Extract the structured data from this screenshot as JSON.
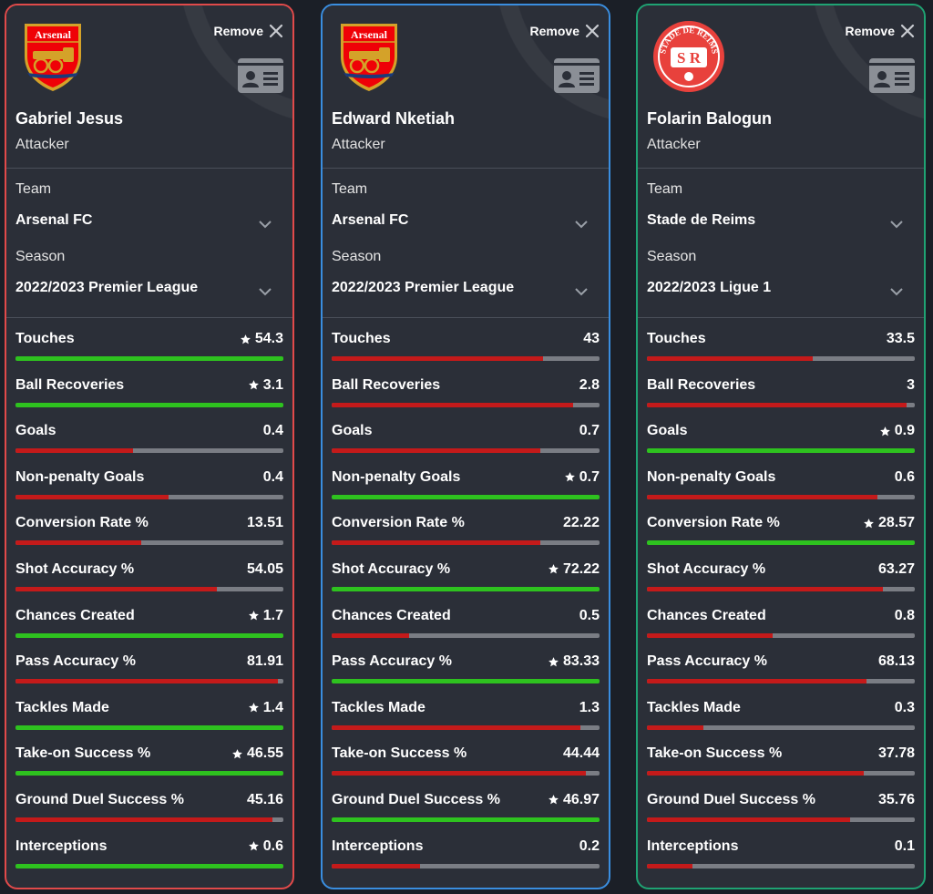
{
  "colors": {
    "best": "#2ec21f",
    "normal": "#c41a1a",
    "track": "#7a7d84"
  },
  "cards": [
    {
      "border": "#e14a4a",
      "club": "arsenal",
      "crest_text": "Arsenal",
      "remove_label": "Remove",
      "name": "Gabriel Jesus",
      "role": "Attacker",
      "team_label": "Team",
      "team": "Arsenal FC",
      "season_label": "Season",
      "season": "2022/2023 Premier League",
      "stats": [
        {
          "name": "Touches",
          "value": "54.3",
          "best": true,
          "fill": 1.0
        },
        {
          "name": "Ball Recoveries",
          "value": "3.1",
          "best": true,
          "fill": 1.0
        },
        {
          "name": "Goals",
          "value": "0.4",
          "best": false,
          "fill": 0.44
        },
        {
          "name": "Non-penalty Goals",
          "value": "0.4",
          "best": false,
          "fill": 0.57
        },
        {
          "name": "Conversion Rate %",
          "value": "13.51",
          "best": false,
          "fill": 0.47
        },
        {
          "name": "Shot Accuracy %",
          "value": "54.05",
          "best": false,
          "fill": 0.75
        },
        {
          "name": "Chances Created",
          "value": "1.7",
          "best": true,
          "fill": 1.0
        },
        {
          "name": "Pass Accuracy %",
          "value": "81.91",
          "best": false,
          "fill": 0.98
        },
        {
          "name": "Tackles Made",
          "value": "1.4",
          "best": true,
          "fill": 1.0
        },
        {
          "name": "Take-on Success %",
          "value": "46.55",
          "best": true,
          "fill": 1.0
        },
        {
          "name": "Ground Duel Success %",
          "value": "45.16",
          "best": false,
          "fill": 0.96
        },
        {
          "name": "Interceptions",
          "value": "0.6",
          "best": true,
          "fill": 1.0
        }
      ]
    },
    {
      "border": "#3a8ee0",
      "club": "arsenal",
      "crest_text": "Arsenal",
      "remove_label": "Remove",
      "name": "Edward Nketiah",
      "role": "Attacker",
      "team_label": "Team",
      "team": "Arsenal FC",
      "season_label": "Season",
      "season": "2022/2023 Premier League",
      "stats": [
        {
          "name": "Touches",
          "value": "43",
          "best": false,
          "fill": 0.79
        },
        {
          "name": "Ball Recoveries",
          "value": "2.8",
          "best": false,
          "fill": 0.9
        },
        {
          "name": "Goals",
          "value": "0.7",
          "best": false,
          "fill": 0.78
        },
        {
          "name": "Non-penalty Goals",
          "value": "0.7",
          "best": true,
          "fill": 1.0
        },
        {
          "name": "Conversion Rate %",
          "value": "22.22",
          "best": false,
          "fill": 0.78
        },
        {
          "name": "Shot Accuracy %",
          "value": "72.22",
          "best": true,
          "fill": 1.0
        },
        {
          "name": "Chances Created",
          "value": "0.5",
          "best": false,
          "fill": 0.29
        },
        {
          "name": "Pass Accuracy %",
          "value": "83.33",
          "best": true,
          "fill": 1.0
        },
        {
          "name": "Tackles Made",
          "value": "1.3",
          "best": false,
          "fill": 0.93
        },
        {
          "name": "Take-on Success %",
          "value": "44.44",
          "best": false,
          "fill": 0.95
        },
        {
          "name": "Ground Duel Success %",
          "value": "46.97",
          "best": true,
          "fill": 1.0
        },
        {
          "name": "Interceptions",
          "value": "0.2",
          "best": false,
          "fill": 0.33
        }
      ]
    },
    {
      "border": "#1fa373",
      "club": "reims",
      "crest_text": "STADE DE REIMS",
      "crest_letters": "S R",
      "remove_label": "Remove",
      "name": "Folarin Balogun",
      "role": "Attacker",
      "team_label": "Team",
      "team": "Stade de Reims",
      "season_label": "Season",
      "season": "2022/2023 Ligue 1",
      "stats": [
        {
          "name": "Touches",
          "value": "33.5",
          "best": false,
          "fill": 0.62
        },
        {
          "name": "Ball Recoveries",
          "value": "3",
          "best": false,
          "fill": 0.97
        },
        {
          "name": "Goals",
          "value": "0.9",
          "best": true,
          "fill": 1.0
        },
        {
          "name": "Non-penalty Goals",
          "value": "0.6",
          "best": false,
          "fill": 0.86
        },
        {
          "name": "Conversion Rate %",
          "value": "28.57",
          "best": true,
          "fill": 1.0
        },
        {
          "name": "Shot Accuracy %",
          "value": "63.27",
          "best": false,
          "fill": 0.88
        },
        {
          "name": "Chances Created",
          "value": "0.8",
          "best": false,
          "fill": 0.47
        },
        {
          "name": "Pass Accuracy %",
          "value": "68.13",
          "best": false,
          "fill": 0.82
        },
        {
          "name": "Tackles Made",
          "value": "0.3",
          "best": false,
          "fill": 0.21
        },
        {
          "name": "Take-on Success %",
          "value": "37.78",
          "best": false,
          "fill": 0.81
        },
        {
          "name": "Ground Duel Success %",
          "value": "35.76",
          "best": false,
          "fill": 0.76
        },
        {
          "name": "Interceptions",
          "value": "0.1",
          "best": false,
          "fill": 0.17
        }
      ]
    }
  ]
}
